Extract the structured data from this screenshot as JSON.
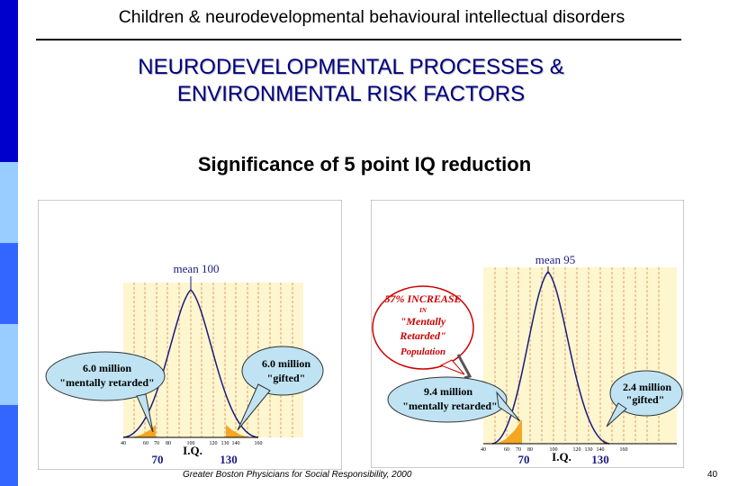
{
  "header": {
    "text": "Children & neurodevelopmental behavioural intellectual disorders"
  },
  "title": {
    "line1": "NEURODEVELOPMENTAL PROCESSES &",
    "line2": "ENVIRONMENTAL RISK FACTORS"
  },
  "subtitle": "Significance of 5 point IQ reduction",
  "left_chart": {
    "mean_label": "mean 100",
    "left_bubble": {
      "line1": "6.0 million",
      "line2": "\"mentally retarded\""
    },
    "right_bubble": {
      "line1": "6.0 million",
      "line2": "\"gifted\""
    },
    "tick_labels": [
      "40",
      "60",
      "70",
      "80",
      "100",
      "120",
      "130",
      "140",
      "160"
    ],
    "axis_label": "I.Q.",
    "cut_low": "70",
    "cut_high": "130"
  },
  "right_chart": {
    "mean_label": "mean 95",
    "increase_bubble": {
      "line1": "57% INCREASE",
      "line2": "IN",
      "line3": "\"Mentally",
      "line4": "Retarded\"",
      "line5": "Population"
    },
    "left_bubble": {
      "line1": "9.4 million",
      "line2": "\"mentally retarded\""
    },
    "right_bubble": {
      "line1": "2.4 million",
      "line2": "\"gifted\""
    },
    "tick_labels": [
      "40",
      "60",
      "70",
      "80",
      "100",
      "120",
      "130",
      "140",
      "160"
    ],
    "axis_label": "I.Q.",
    "cut_low": "70",
    "cut_high": "130"
  },
  "footer": "Greater Boston Physicians for Social Responsibility, 2000",
  "page_number": "40",
  "colors": {
    "sidebar_dark": "#0000cc",
    "sidebar_light": "#99ccff",
    "title": "#000080",
    "shade": "#f5a623",
    "chart_bg": "#fdf6cf",
    "bubble": "#bfe3f3"
  }
}
